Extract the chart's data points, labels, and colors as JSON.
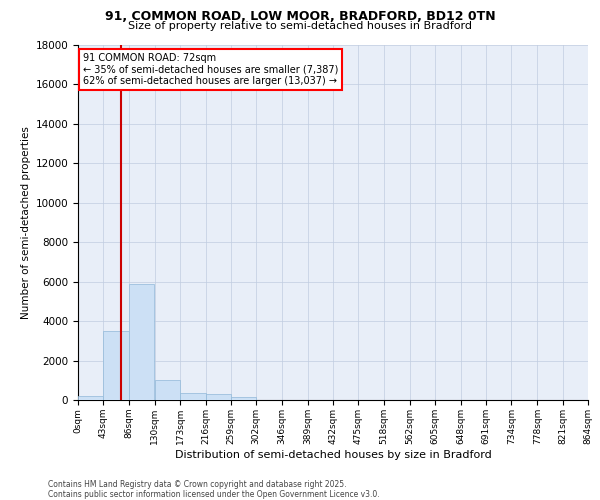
{
  "title_line1": "91, COMMON ROAD, LOW MOOR, BRADFORD, BD12 0TN",
  "title_line2": "Size of property relative to semi-detached houses in Bradford",
  "xlabel": "Distribution of semi-detached houses by size in Bradford",
  "ylabel": "Number of semi-detached properties",
  "property_label": "91 COMMON ROAD: 72sqm",
  "pct_smaller": "35% of semi-detached houses are smaller (7,387)",
  "pct_larger": "62% of semi-detached houses are larger (13,037)",
  "property_size": 72,
  "bin_edges": [
    0,
    43,
    86,
    130,
    173,
    216,
    259,
    302,
    346,
    389,
    432,
    475,
    518,
    562,
    605,
    648,
    691,
    734,
    778,
    821,
    864
  ],
  "bin_labels": [
    "0sqm",
    "43sqm",
    "86sqm",
    "130sqm",
    "173sqm",
    "216sqm",
    "259sqm",
    "302sqm",
    "346sqm",
    "389sqm",
    "432sqm",
    "475sqm",
    "518sqm",
    "562sqm",
    "605sqm",
    "648sqm",
    "691sqm",
    "734sqm",
    "778sqm",
    "821sqm",
    "864sqm"
  ],
  "bar_values": [
    200,
    3480,
    5900,
    1000,
    340,
    300,
    130,
    0,
    0,
    0,
    0,
    0,
    0,
    0,
    0,
    0,
    0,
    0,
    0,
    0
  ],
  "bar_color": "#cce0f5",
  "bar_edge_color": "#90b8d8",
  "vline_color": "#cc0000",
  "ylim_max": 18000,
  "yticks": [
    0,
    2000,
    4000,
    6000,
    8000,
    10000,
    12000,
    14000,
    16000,
    18000
  ],
  "plot_bg_color": "#e8eef8",
  "grid_color": "#c0cce0",
  "footer_line1": "Contains HM Land Registry data © Crown copyright and database right 2025.",
  "footer_line2": "Contains public sector information licensed under the Open Government Licence v3.0."
}
